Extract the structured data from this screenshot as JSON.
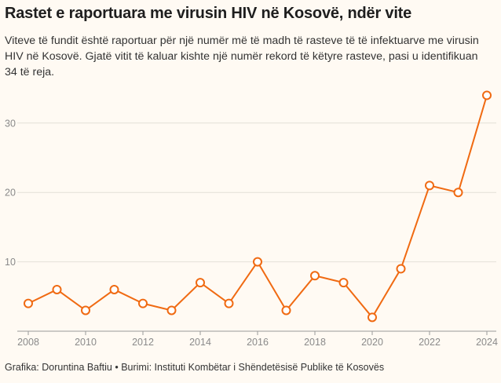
{
  "title": "Rastet e raportuara me virusin HIV në Kosovë, ndër vite",
  "subtitle": "Viteve të fundit është raportuar për një numër më të madh të rasteve të të infektuarve me virusin HIV në Kosovë. Gjatë vitit të kaluar kishte një numër rekord të këtyre rasteve, pasi u identifikuan 34 të reja.",
  "footer": "Grafika: Doruntina Baftiu • Burimi: Instituti Kombëtar i Shëndetësisë Publike të Kosovës",
  "colors": {
    "line": "#f06a12",
    "marker_fill": "#ffffff",
    "grid": "#e4e0d8",
    "axis": "#8a8a8a"
  },
  "chart_data": {
    "type": "line",
    "x": [
      2008,
      2009,
      2010,
      2011,
      2012,
      2013,
      2014,
      2015,
      2016,
      2017,
      2018,
      2019,
      2020,
      2021,
      2022,
      2023,
      2024
    ],
    "series": [
      {
        "values": [
          4,
          6,
          3,
          6,
          4,
          3,
          7,
          4,
          10,
          3,
          8,
          7,
          2,
          9,
          21,
          20,
          34
        ]
      }
    ],
    "x_ticks": [
      "2008",
      "2010",
      "2012",
      "2014",
      "2016",
      "2018",
      "2020",
      "2022",
      "2024"
    ],
    "y_ticks": [
      "10",
      "20",
      "30"
    ],
    "xlim": [
      2008,
      2024
    ],
    "ylim": [
      0,
      34
    ],
    "grid": "horizontal"
  }
}
